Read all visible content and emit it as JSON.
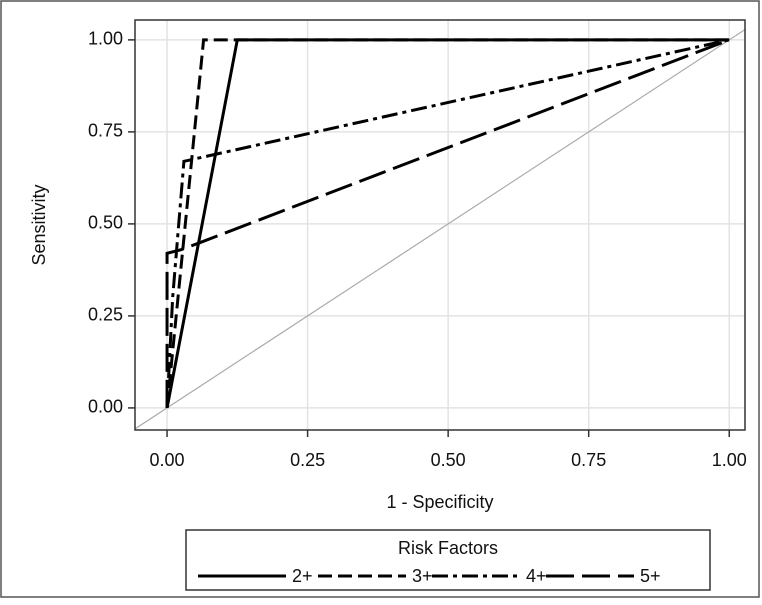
{
  "chart_data": {
    "type": "line",
    "x_label": "1 - Specificity",
    "y_label": "Sensitivity",
    "xlim": [
      -0.057,
      1.028
    ],
    "ylim": [
      -0.06,
      1.054
    ],
    "xticks": [
      {
        "value": 0,
        "label": "0.00"
      },
      {
        "value": 0.25,
        "label": "0.25"
      },
      {
        "value": 0.5,
        "label": "0.50"
      },
      {
        "value": 0.75,
        "label": "0.75"
      },
      {
        "value": 1,
        "label": "1.00"
      }
    ],
    "yticks": [
      {
        "value": 0,
        "label": "0.00"
      },
      {
        "value": 0.25,
        "label": "0.25"
      },
      {
        "value": 0.5,
        "label": "0.50"
      },
      {
        "value": 0.75,
        "label": "0.75"
      },
      {
        "value": 1,
        "label": "1.00"
      }
    ],
    "grid": true,
    "reference_line": true,
    "legend_title": "Risk Factors",
    "legend_position": "bottom",
    "series": [
      {
        "name": "2+",
        "color": "#000000",
        "dash": "solid",
        "x": [
          0,
          0.125,
          1
        ],
        "values": [
          0,
          1,
          1
        ]
      },
      {
        "name": "3+",
        "color": "#000000",
        "dash": "dash",
        "x": [
          0,
          0.065,
          1
        ],
        "values": [
          0,
          1,
          1
        ]
      },
      {
        "name": "4+",
        "color": "#000000",
        "dash": "dashdot",
        "x": [
          0,
          0.01,
          0.03,
          1
        ],
        "values": [
          0,
          0.3,
          0.67,
          1
        ]
      },
      {
        "name": "5+",
        "color": "#000000",
        "dash": "longdash",
        "x": [
          0,
          0,
          0.025,
          0.06,
          1
        ],
        "values": [
          0,
          0.42,
          0.43,
          0.45,
          1
        ]
      }
    ]
  }
}
